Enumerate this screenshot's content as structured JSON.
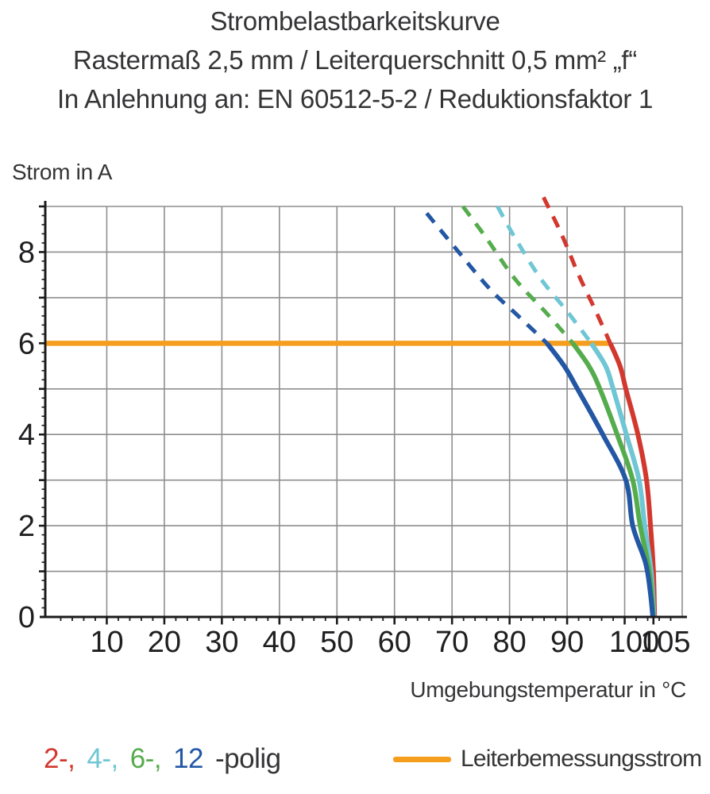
{
  "title": {
    "line1": "Strombelastbarkeitskurve",
    "line2": "Rastermaß 2,5 mm / Leiterquerschnitt 0,5 mm² „f“",
    "line3": "In Anlehnung an: EN 60512-5-2 / Reduktionsfaktor 1"
  },
  "axis_titles": {
    "y": "Strom in A",
    "x": "Umgebungstemperatur in °C"
  },
  "legend": {
    "poles": [
      {
        "label": "2-,",
        "color": "#D2382E",
        "series": "2-polig"
      },
      {
        "label": "4-,",
        "color": "#6FC6D4",
        "series": "4-polig"
      },
      {
        "label": "6-,",
        "color": "#55AC4D",
        "series": "6-polig"
      },
      {
        "label": "12",
        "color": "#2357A4",
        "series": "12-polig"
      }
    ],
    "poles_suffix": "-polig",
    "rated_label": "Leiterbemessungsstrom"
  },
  "chart_data": {
    "type": "line",
    "title": "Strombelastbarkeitskurve",
    "xlabel": "Umgebungstemperatur in °C",
    "ylabel": "Strom in A",
    "xlim": [
      0,
      110
    ],
    "ylim": [
      0,
      9
    ],
    "grid": true,
    "legend_position": "bottom",
    "x_gridlines": [
      10,
      20,
      30,
      40,
      50,
      60,
      70,
      80,
      90,
      100,
      110
    ],
    "y_gridlines": [
      1,
      2,
      3,
      4,
      5,
      6,
      7,
      8,
      9
    ],
    "x_major_ticks": [
      10,
      20,
      30,
      40,
      50,
      60,
      70,
      80,
      90,
      100,
      105
    ],
    "x_minor_tick_step": 2,
    "y_labeled_ticks": [
      0,
      2,
      4,
      6,
      8
    ],
    "y_major_tick_step": 1,
    "y_minor_tick_step": 0.2,
    "colors": {
      "grid": "#8E8E8E",
      "axis": "#1B1B1D",
      "tick_label": "#1F1F21",
      "rated": "#F59E1E"
    },
    "rated_line": {
      "label": "Leiterbemessungsstrom",
      "color": "#F59E1E",
      "y": 6,
      "x_start": 0,
      "x_end": 97.5
    },
    "series": [
      {
        "name": "2-polig",
        "color": "#D2382E",
        "dashed_points": [
          [
            85.9,
            9.2
          ],
          [
            89.0,
            8.4
          ],
          [
            92.0,
            7.5
          ],
          [
            95.0,
            6.7
          ],
          [
            97.5,
            6
          ]
        ],
        "solid_points": [
          [
            97.5,
            6
          ],
          [
            99.2,
            5.5
          ],
          [
            100.2,
            5
          ],
          [
            102.3,
            4
          ],
          [
            103.8,
            3
          ],
          [
            104.5,
            2
          ],
          [
            105.0,
            1
          ],
          [
            105.2,
            0
          ]
        ]
      },
      {
        "name": "4-polig",
        "color": "#6FC6D4",
        "dashed_points": [
          [
            77.9,
            9.0
          ],
          [
            81.0,
            8.3
          ],
          [
            85.5,
            7.4
          ],
          [
            90.0,
            6.7
          ],
          [
            94.2,
            6
          ]
        ],
        "solid_points": [
          [
            94.2,
            6
          ],
          [
            96.7,
            5.5
          ],
          [
            98.0,
            5
          ],
          [
            100.3,
            4
          ],
          [
            102.5,
            3
          ],
          [
            103.5,
            2
          ],
          [
            104.6,
            1
          ],
          [
            105.1,
            0
          ]
        ]
      },
      {
        "name": "6-polig",
        "color": "#55AC4D",
        "dashed_points": [
          [
            71.9,
            9.0
          ],
          [
            76.0,
            8.3
          ],
          [
            81.0,
            7.4
          ],
          [
            86.5,
            6.65
          ],
          [
            91.0,
            6
          ]
        ],
        "solid_points": [
          [
            91.0,
            6
          ],
          [
            93.8,
            5.5
          ],
          [
            95.7,
            5
          ],
          [
            98.7,
            4
          ],
          [
            101.4,
            3
          ],
          [
            102.7,
            2
          ],
          [
            104.3,
            1
          ],
          [
            105.0,
            0
          ]
        ]
      },
      {
        "name": "12-polig",
        "color": "#2357A4",
        "dashed_points": [
          [
            65.6,
            8.85
          ],
          [
            70.5,
            8.1
          ],
          [
            76.5,
            7.2
          ],
          [
            81.5,
            6.6
          ],
          [
            86.5,
            6
          ]
        ],
        "solid_points": [
          [
            86.5,
            6
          ],
          [
            89.5,
            5.5
          ],
          [
            91.8,
            5
          ],
          [
            96.2,
            4
          ],
          [
            100.2,
            3
          ],
          [
            101.4,
            2
          ],
          [
            103.6,
            1.2
          ],
          [
            104.4,
            0.6
          ],
          [
            104.9,
            0
          ]
        ]
      }
    ]
  }
}
